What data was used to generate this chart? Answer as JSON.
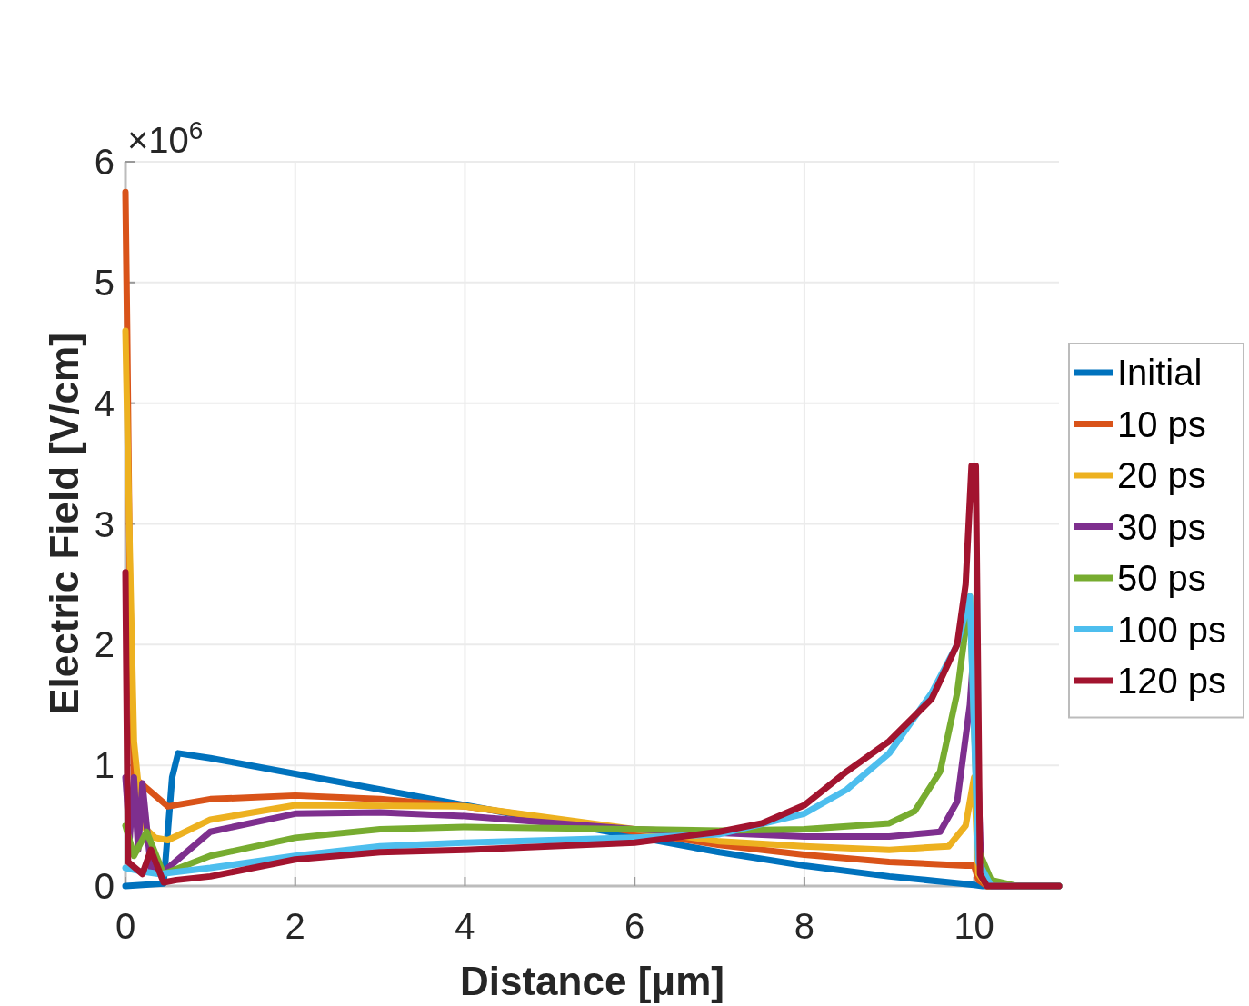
{
  "chart_data": {
    "type": "line",
    "xlabel": "Distance [μm]",
    "ylabel": "Electric Field [V/cm]",
    "annotations": [
      "×10$^{6}$"
    ],
    "xlim": [
      0,
      11
    ],
    "xticks": [
      0,
      2,
      4,
      6,
      8,
      10
    ],
    "ylim": [
      0,
      6
    ],
    "yticks": [
      0,
      1,
      2,
      3,
      4,
      5,
      6
    ],
    "grid": true,
    "legend": "right",
    "line_style": "solid",
    "marker": "none",
    "series": [
      {
        "name": "Initial",
        "color": "#0072bd",
        "x": [
          0,
          0.45,
          0.55,
          0.62,
          1,
          2,
          3,
          4,
          5,
          6,
          7,
          8,
          9,
          10,
          10.1,
          11
        ],
        "values": [
          0,
          0.02,
          0.9,
          1.1,
          1.06,
          0.93,
          0.8,
          0.67,
          0.54,
          0.41,
          0.28,
          0.17,
          0.08,
          0.01,
          0,
          0
        ]
      },
      {
        "name": "10 ps",
        "color": "#d95319",
        "x": [
          0,
          0.02,
          0.05,
          0.1,
          0.5,
          1,
          2,
          3,
          4,
          5,
          6,
          7,
          8,
          9,
          9.9,
          10,
          10.05,
          10.15,
          11
        ],
        "values": [
          5.75,
          4.6,
          2.6,
          0.9,
          0.66,
          0.72,
          0.75,
          0.72,
          0.66,
          0.56,
          0.45,
          0.34,
          0.26,
          0.2,
          0.17,
          0.17,
          0.05,
          0,
          0
        ]
      },
      {
        "name": "20 ps",
        "color": "#edb120",
        "x": [
          0,
          0.05,
          0.1,
          0.2,
          0.35,
          0.5,
          1,
          2,
          4,
          6,
          7,
          8,
          9,
          9.7,
          9.9,
          10,
          10.05,
          10.15,
          11
        ],
        "values": [
          4.6,
          2.8,
          1.2,
          0.5,
          0.4,
          0.38,
          0.55,
          0.67,
          0.66,
          0.47,
          0.37,
          0.33,
          0.3,
          0.33,
          0.5,
          0.9,
          0.1,
          0,
          0
        ]
      },
      {
        "name": "30 ps",
        "color": "#7e2f8e",
        "x": [
          0,
          0.05,
          0.1,
          0.15,
          0.2,
          0.3,
          0.45,
          1,
          2,
          3,
          4,
          6,
          8,
          9,
          9.6,
          9.8,
          9.95,
          10,
          10.08,
          10.2,
          11
        ],
        "values": [
          0.9,
          0.4,
          0.9,
          0.3,
          0.85,
          0.15,
          0.12,
          0.45,
          0.6,
          0.61,
          0.58,
          0.47,
          0.41,
          0.41,
          0.45,
          0.7,
          1.5,
          2.0,
          0.2,
          0,
          0
        ]
      },
      {
        "name": "50 ps",
        "color": "#77ac30",
        "x": [
          0,
          0.1,
          0.25,
          0.45,
          1,
          2,
          3,
          4,
          6,
          7,
          8,
          9,
          9.3,
          9.6,
          9.8,
          9.95,
          10.05,
          10.2,
          10.5,
          11
        ],
        "values": [
          0.5,
          0.25,
          0.45,
          0.1,
          0.25,
          0.4,
          0.47,
          0.49,
          0.47,
          0.46,
          0.47,
          0.52,
          0.62,
          0.95,
          1.6,
          2.4,
          0.3,
          0.05,
          0,
          0
        ]
      },
      {
        "name": "100 ps",
        "color": "#4dbeee",
        "x": [
          0,
          0.2,
          0.4,
          1,
          2,
          3,
          4,
          6,
          7,
          8,
          8.5,
          9,
          9.5,
          9.8,
          9.95,
          10.05,
          10.2,
          11
        ],
        "values": [
          0.15,
          0.12,
          0.1,
          0.15,
          0.25,
          0.33,
          0.36,
          0.4,
          0.43,
          0.6,
          0.8,
          1.1,
          1.6,
          2.0,
          2.4,
          0.2,
          0,
          0
        ]
      },
      {
        "name": "120 ps",
        "color": "#a2142f",
        "x": [
          0,
          0.03,
          0.2,
          0.3,
          0.45,
          0.6,
          1,
          2,
          3,
          4,
          5,
          6,
          7,
          7.5,
          8,
          8.5,
          9,
          9.5,
          9.8,
          9.9,
          9.97,
          10.02,
          10.07,
          10.15,
          11
        ],
        "values": [
          2.6,
          0.2,
          0.1,
          0.3,
          0.03,
          0.05,
          0.08,
          0.22,
          0.28,
          0.3,
          0.33,
          0.36,
          0.45,
          0.52,
          0.67,
          0.95,
          1.2,
          1.55,
          2.0,
          2.5,
          3.48,
          3.48,
          0.1,
          0,
          0
        ]
      }
    ]
  }
}
